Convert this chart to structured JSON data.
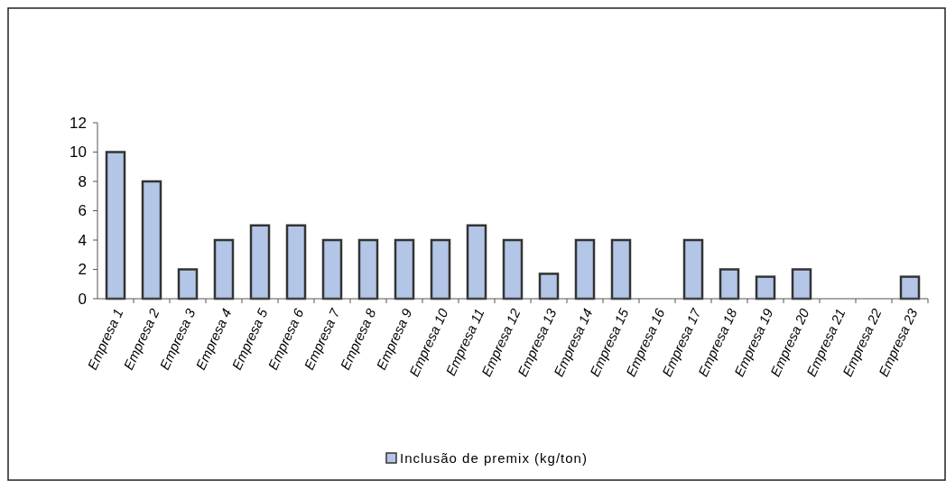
{
  "chart_data": {
    "type": "bar",
    "categories": [
      "Empresa 1",
      "Empresa 2",
      "Empresa 3",
      "Empresa 4",
      "Empresa 5",
      "Empresa 6",
      "Empresa 7",
      "Empresa 8",
      "Empresa 9",
      "Empresa 10",
      "Empresa 11",
      "Empresa 12",
      "Empresa 13",
      "Empresa 14",
      "Empresa 15",
      "Empresa 16",
      "Empresa 17",
      "Empresa 18",
      "Empresa 19",
      "Empresa 20",
      "Empresa 21",
      "Empresa 22",
      "Empresa 23"
    ],
    "series": [
      {
        "name": "Inclusão de premix (kg/ton)",
        "color": "#b4c6e7",
        "values": [
          10,
          8,
          2,
          4,
          5,
          5,
          4,
          4,
          4,
          4,
          5,
          4,
          1.7,
          4,
          4,
          0,
          4,
          2,
          1.5,
          2,
          0,
          0,
          1.5
        ]
      }
    ],
    "ylim": [
      0,
      12
    ],
    "yticks": [
      0,
      2,
      4,
      6,
      8,
      10,
      12
    ],
    "grid": false,
    "legend": "bottom"
  }
}
